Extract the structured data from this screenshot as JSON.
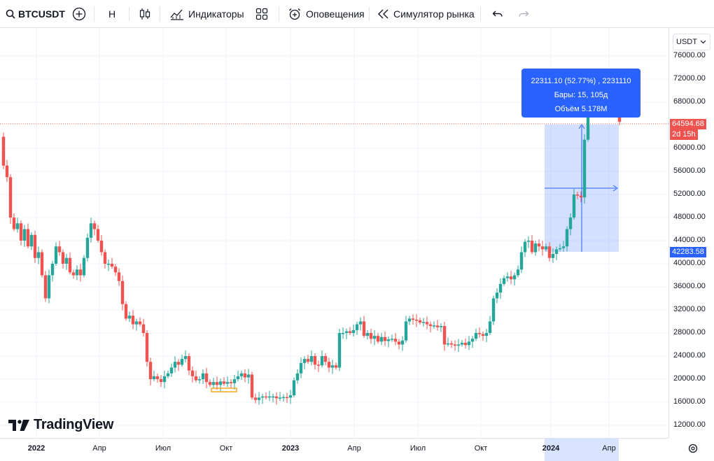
{
  "toolbar": {
    "symbol": "BTCUSDT",
    "interval": "Н",
    "indicators_label": "Индикаторы",
    "alerts_label": "Оповещения",
    "replay_label": "Симулятор рынка"
  },
  "currency": "USDT",
  "price_axis": {
    "labels": [
      "76000.00",
      "72000.00",
      "68000.00",
      "60000.00",
      "56000.00",
      "52000.00",
      "48000.00",
      "44000.00",
      "40000.00",
      "36000.00",
      "32000.00",
      "28000.00",
      "24000.00",
      "20000.00",
      "16000.00",
      "12000.00"
    ],
    "last_price": "64594.68",
    "countdown": "2d 15h",
    "range_low": "42283.58"
  },
  "time_axis": [
    "2022",
    "Апр",
    "Июл",
    "Окт",
    "2023",
    "Апр",
    "Июл",
    "Окт",
    "2024",
    "Апр"
  ],
  "measure_tooltip": {
    "line1": "22311.10 (52.77%) , 2231110",
    "line2": "Бары: 15, 105д",
    "line3": "Объём 5.178M"
  },
  "logo_text": "TradingView",
  "colors": {
    "up": "#26a69a",
    "down": "#ef5350",
    "accent": "#2962ff"
  }
}
